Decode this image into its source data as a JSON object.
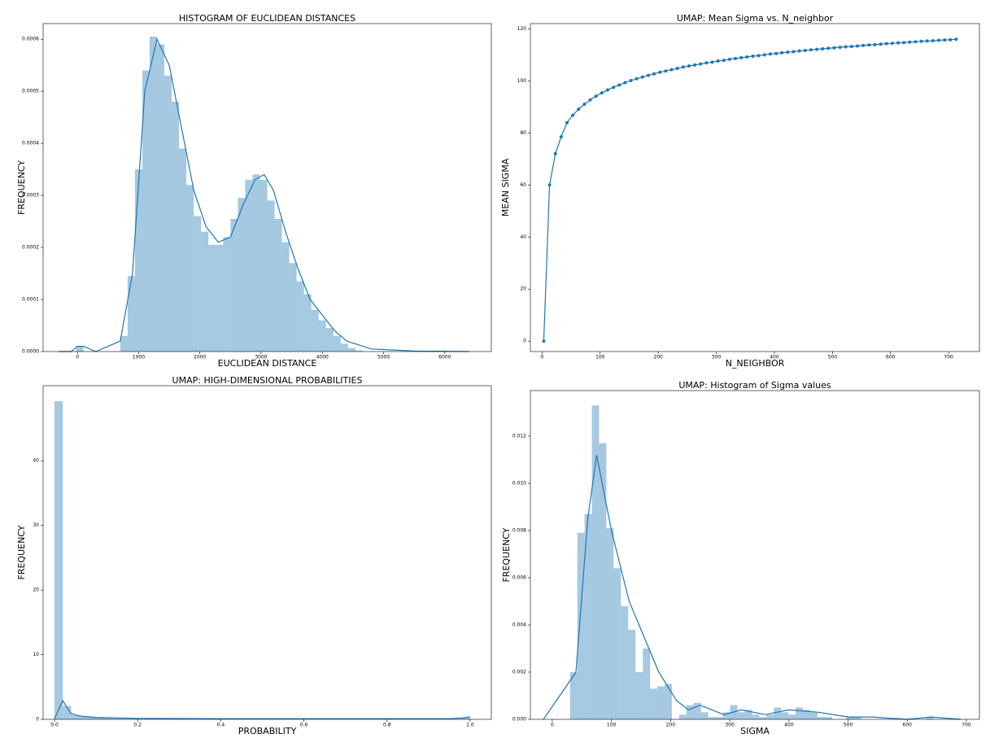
{
  "chart_data": [
    {
      "type": "histogram",
      "title": "HISTOGRAM OF EUCLIDEAN DISTANCES",
      "x_label": "EUCLIDEAN DISTANCE",
      "y_label": "FREQUENCY",
      "color": "#1f77b4",
      "bins": [
        -20,
        100,
        220,
        340,
        460,
        580,
        700,
        820,
        940,
        1060,
        1180,
        1300,
        1420,
        1540,
        1660,
        1780,
        1900,
        2020,
        2140,
        2260,
        2380,
        2500,
        2620,
        2740,
        2860,
        2980,
        3100,
        3220,
        3340,
        3460,
        3580,
        3700,
        3820,
        3940,
        4060,
        4180,
        4300,
        4420,
        4540,
        4660
      ],
      "values": [
        1e-05,
        0,
        0,
        0,
        0,
        0,
        3e-05,
        0.000145,
        0.00035,
        0.00054,
        0.000605,
        0.00059,
        0.00053,
        0.00048,
        0.00039,
        0.00032,
        0.00026,
        0.00023,
        0.000205,
        0.000205,
        0.00022,
        0.000255,
        0.000295,
        0.00033,
        0.00034,
        0.00033,
        0.00029,
        0.000255,
        0.00021,
        0.00017,
        0.000135,
        0.00011,
        8e-05,
        6e-05,
        4.5e-05,
        3e-05,
        1.5e-05,
        7e-06,
        2e-06
      ],
      "kde": {
        "x": [
          -300,
          -100,
          0,
          100,
          300,
          700,
          900,
          1100,
          1300,
          1500,
          1700,
          1900,
          2100,
          2300,
          2500,
          2700,
          2900,
          3050,
          3200,
          3400,
          3600,
          3800,
          4000,
          4200,
          4400,
          4800,
          5500,
          6400
        ],
        "y": [
          0,
          0,
          1e-05,
          1e-05,
          0,
          2e-05,
          0.00015,
          0.0005,
          0.0006,
          0.00055,
          0.00043,
          0.00031,
          0.00024,
          0.00021,
          0.00022,
          0.00028,
          0.00033,
          0.00034,
          0.00031,
          0.00023,
          0.00016,
          0.0001,
          7e-05,
          4e-05,
          2e-05,
          5e-06,
          1e-06,
          0
        ]
      },
      "xlim": [
        -560,
        6760
      ],
      "ylim": [
        0,
        0.00063
      ],
      "xticks": [
        0,
        1000,
        2000,
        3000,
        4000,
        5000,
        6000
      ],
      "yticks": [
        {
          "value": 0,
          "label": "0.0000"
        },
        {
          "value": 0.0001,
          "label": "0.0001"
        },
        {
          "value": 0.0002,
          "label": "0.0002"
        },
        {
          "value": 0.0003,
          "label": "0.0003"
        },
        {
          "value": 0.0004,
          "label": "0.0004"
        },
        {
          "value": 0.0005,
          "label": "0.0005"
        },
        {
          "value": 0.0006,
          "label": "0.0006"
        }
      ]
    },
    {
      "type": "line",
      "title": "UMAP: Mean Sigma vs. N_neighbor",
      "x_label": "N_NEIGHBOR",
      "y_label": "MEAN SIGMA",
      "color": "#1f77b4",
      "markers": true,
      "x": [
        3,
        13,
        23,
        33,
        43,
        53,
        63,
        73,
        83,
        93,
        103,
        113,
        123,
        133,
        143,
        153,
        163,
        173,
        183,
        193,
        203,
        213,
        223,
        233,
        243,
        253,
        263,
        273,
        283,
        293,
        303,
        313,
        323,
        333,
        343,
        353,
        363,
        373,
        383,
        393,
        403,
        413,
        423,
        433,
        443,
        453,
        463,
        473,
        483,
        493,
        503,
        513,
        523,
        533,
        543,
        553,
        563,
        573,
        583,
        593,
        603,
        613,
        623,
        633,
        643,
        653,
        663,
        673,
        683,
        693,
        703,
        713
      ],
      "values": [
        0,
        60,
        72,
        78.5,
        83.9,
        86.8,
        89.1,
        91.0,
        92.7,
        94.1,
        95.4,
        96.5,
        97.5,
        98.4,
        99.3,
        100.1,
        100.8,
        101.5,
        102.1,
        102.7,
        103.3,
        103.8,
        104.3,
        104.8,
        105.3,
        105.7,
        106.1,
        106.5,
        106.9,
        107.2,
        107.6,
        107.9,
        108.3,
        108.6,
        108.9,
        109.2,
        109.5,
        109.7,
        110.0,
        110.3,
        110.5,
        110.8,
        111.0,
        111.2,
        111.5,
        111.7,
        111.9,
        112.1,
        112.3,
        112.5,
        112.7,
        112.9,
        113.1,
        113.2,
        113.4,
        113.6,
        113.8,
        113.9,
        114.1,
        114.3,
        114.4,
        114.6,
        114.7,
        114.9,
        115.0,
        115.2,
        115.3,
        115.4,
        115.6,
        115.7,
        115.8,
        116.0
      ],
      "xlim": [
        -20,
        753
      ],
      "ylim": [
        -4,
        122
      ],
      "xticks": [
        0,
        100,
        200,
        300,
        400,
        500,
        600,
        700
      ],
      "yticks": [
        0,
        20,
        40,
        60,
        80,
        100,
        120
      ]
    },
    {
      "type": "histogram",
      "title": "UMAP: HIGH-DIMENSIONAL PROBABILITIES",
      "x_label": "PROBABILITY",
      "y_label": "FREQUENCY",
      "color": "#1f77b4",
      "bins": [
        0,
        0.02,
        0.04,
        0.06,
        0.08,
        0.1,
        0.12,
        0.14,
        0.16,
        0.18,
        0.2,
        0.22,
        0.24,
        0.26,
        0.28,
        0.3,
        0.32,
        0.34,
        0.36,
        0.38,
        0.4,
        0.42,
        0.44,
        0.46,
        0.48,
        0.5,
        0.52,
        0.54,
        0.56,
        0.58,
        0.6,
        0.62,
        0.64,
        0.66,
        0.68,
        0.7,
        0.72,
        0.74,
        0.76,
        0.78,
        0.8,
        0.82,
        0.84,
        0.86,
        0.88,
        0.9,
        0.92,
        0.94,
        0.96,
        0.98,
        1.0
      ],
      "values": [
        49.2,
        2.1,
        0.7,
        0.4,
        0.3,
        0.2,
        0.2,
        0.15,
        0.15,
        0.1,
        0.1,
        0.1,
        0.1,
        0.1,
        0.1,
        0.1,
        0.1,
        0.1,
        0.1,
        0.1,
        0.05,
        0.05,
        0.05,
        0.05,
        0.05,
        0.05,
        0.05,
        0.05,
        0.05,
        0.05,
        0.05,
        0.05,
        0.05,
        0.05,
        0.05,
        0.05,
        0.05,
        0.05,
        0.05,
        0.05,
        0.05,
        0.05,
        0.05,
        0.05,
        0.05,
        0.05,
        0.05,
        0.05,
        0.05,
        0.3
      ],
      "kde": {
        "x": [
          0,
          0.01,
          0.02,
          0.03,
          0.04,
          0.06,
          0.1,
          0.2,
          0.4,
          0.6,
          0.8,
          0.95,
          0.98,
          1.0
        ],
        "y": [
          0.1,
          1.5,
          2.9,
          1.8,
          0.9,
          0.5,
          0.3,
          0.15,
          0.1,
          0.1,
          0.1,
          0.1,
          0.2,
          0.4
        ]
      },
      "xlim": [
        -0.0274,
        1.051
      ],
      "ylim": [
        0,
        51.6
      ],
      "xticks": [
        {
          "value": 0,
          "label": "0.0"
        },
        0.2,
        0.4,
        0.6,
        0.8,
        {
          "value": 1,
          "label": "1.0"
        }
      ],
      "yticks": [
        0,
        10,
        20,
        30,
        40
      ]
    },
    {
      "type": "histogram",
      "title": "UMAP: Histogram of Sigma values",
      "x_label": "SIGMA",
      "y_label": "FREQUENCY",
      "color": "#1f77b4",
      "bins": [
        30,
        42.3,
        54.6,
        66.9,
        79.2,
        91.5,
        103.8,
        116.1,
        128.4,
        140.7,
        153,
        165.3,
        177.6,
        189.9,
        202.2,
        214.5,
        226.8,
        239.1,
        251.4,
        263.7,
        276,
        288.3,
        300.6,
        312.9,
        325.2,
        337.5,
        349.8,
        362.1,
        374.4,
        386.7,
        399,
        411.3,
        423.6,
        435.9,
        448.2,
        460.5,
        472.8,
        485.1,
        497.4,
        509.7,
        522,
        534.3,
        546.6,
        558.9,
        571.2,
        583.5,
        595.8,
        608.1,
        620.4,
        632.7,
        645
      ],
      "values": [
        0.002,
        0.0079,
        0.0087,
        0.0133,
        0.0117,
        0.0081,
        0.0064,
        0.0048,
        0.0038,
        0.002,
        0.003,
        0.0013,
        0.0014,
        0.0015,
        0,
        0.0002,
        0.0006,
        0.0007,
        0.0003,
        0.0001,
        0.0001,
        0.0003,
        0.0006,
        0.0003,
        0.0004,
        0.0002,
        0.0001,
        0.0002,
        0.0005,
        0.0003,
        0.0002,
        0.0005,
        0.0004,
        0.0003,
        0.0001,
        0.0001,
        0,
        0,
        0.0001,
        0.0001,
        0,
        0,
        0,
        0,
        0,
        0,
        0,
        0,
        0,
        0.0001
      ],
      "kde": {
        "x": [
          -15,
          40,
          60,
          75,
          100,
          130,
          150,
          180,
          210,
          230,
          250,
          290,
          320,
          360,
          400,
          450,
          500,
          540,
          600,
          640,
          690
        ],
        "y": [
          0,
          0.002,
          0.0085,
          0.0112,
          0.008,
          0.005,
          0.0038,
          0.002,
          0.0008,
          0.0004,
          0.0006,
          0.0002,
          0.0004,
          0.0002,
          0.0004,
          0.0003,
          0.0001,
          0.0001,
          0,
          0.0001,
          0
        ]
      },
      "xlim": [
        -37,
        722
      ],
      "ylim": [
        0,
        0.01393
      ],
      "xticks": [
        0,
        100,
        200,
        300,
        400,
        500,
        600,
        700
      ],
      "yticks": [
        {
          "value": 0,
          "label": "0.000"
        },
        {
          "value": 0.002,
          "label": "0.002"
        },
        {
          "value": 0.004,
          "label": "0.004"
        },
        {
          "value": 0.006,
          "label": "0.006"
        },
        {
          "value": 0.008,
          "label": "0.008"
        },
        {
          "value": 0.01,
          "label": "0.010"
        },
        {
          "value": 0.012,
          "label": "0.012"
        }
      ]
    }
  ]
}
